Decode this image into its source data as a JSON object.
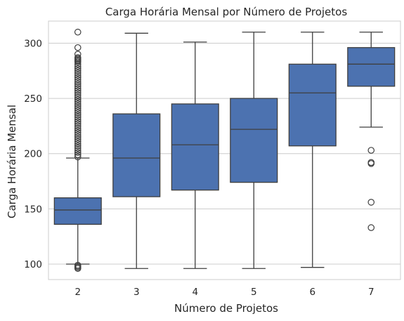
{
  "chart_data": {
    "type": "box",
    "title": "Carga Horária Mensal por Número de Projetos",
    "xlabel": "Número de Projetos",
    "ylabel": "Carga Horária Mensal",
    "ylim": [
      86,
      320
    ],
    "yticks": [
      100,
      150,
      200,
      250,
      300
    ],
    "grid": true,
    "box_color": "#4c72b0",
    "categories": [
      "2",
      "3",
      "4",
      "5",
      "6",
      "7"
    ],
    "boxes": [
      {
        "category": "2",
        "whisker_low": 100,
        "q1": 136,
        "median": 149,
        "q3": 160,
        "whisker_high": 196,
        "outliers": [
          96,
          97,
          98,
          99,
          197,
          199,
          201,
          203,
          205,
          207,
          209,
          211,
          213,
          215,
          217,
          219,
          221,
          223,
          225,
          227,
          229,
          231,
          233,
          235,
          237,
          239,
          241,
          243,
          245,
          247,
          249,
          251,
          253,
          255,
          257,
          259,
          261,
          263,
          265,
          267,
          269,
          271,
          273,
          275,
          277,
          279,
          281,
          283,
          284,
          285,
          286,
          287,
          290,
          296,
          310
        ]
      },
      {
        "category": "3",
        "whisker_low": 96,
        "q1": 161,
        "median": 196,
        "q3": 236,
        "whisker_high": 309,
        "outliers": []
      },
      {
        "category": "4",
        "whisker_low": 96,
        "q1": 167,
        "median": 208,
        "q3": 245,
        "whisker_high": 301,
        "outliers": []
      },
      {
        "category": "5",
        "whisker_low": 96,
        "q1": 174,
        "median": 222,
        "q3": 250,
        "whisker_high": 310,
        "outliers": []
      },
      {
        "category": "6",
        "whisker_low": 97,
        "q1": 207,
        "median": 255,
        "q3": 281,
        "whisker_high": 310,
        "outliers": []
      },
      {
        "category": "7",
        "whisker_low": 224,
        "q1": 261,
        "median": 281,
        "q3": 296,
        "whisker_high": 310,
        "outliers": [
          203,
          192,
          191,
          156,
          133
        ]
      }
    ]
  }
}
